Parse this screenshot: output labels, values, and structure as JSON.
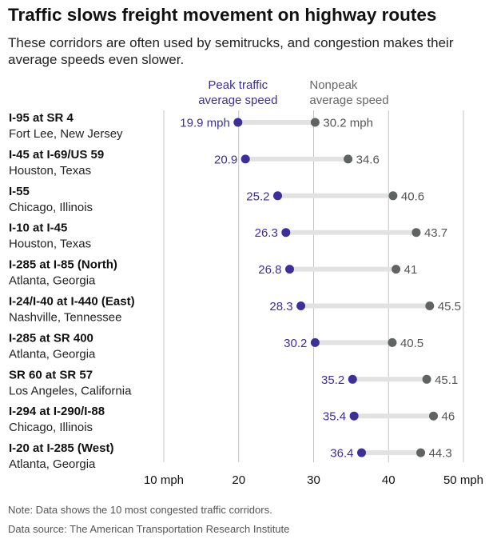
{
  "chart_data": {
    "type": "dumbbell",
    "title": "Traffic slows freight movement on highway routes",
    "subtitle": "These corridors are often used by semitrucks, and congestion makes their average speeds even slower.",
    "series": [
      {
        "name": "Peak traffic average speed",
        "legend_lines": [
          "Peak traffic",
          "average speed"
        ],
        "color": "#3d2f9a"
      },
      {
        "name": "Nonpeak average speed",
        "legend_lines": [
          "Nonpeak",
          "average speed"
        ],
        "color": "#5f6361"
      }
    ],
    "categories": [
      {
        "route": "I-95 at SR 4",
        "location": "Fort Lee, New Jersey",
        "peak": 19.9,
        "nonpeak": 30.2,
        "peak_label": "19.9 mph",
        "nonpeak_label": "30.2 mph"
      },
      {
        "route": "I-45 at I-69/US 59",
        "location": "Houston, Texas",
        "peak": 20.9,
        "nonpeak": 34.6,
        "peak_label": "20.9",
        "nonpeak_label": "34.6"
      },
      {
        "route": "I-55",
        "location": "Chicago, Illinois",
        "peak": 25.2,
        "nonpeak": 40.6,
        "peak_label": "25.2",
        "nonpeak_label": "40.6"
      },
      {
        "route": "I-10 at I-45",
        "location": "Houston, Texas",
        "peak": 26.3,
        "nonpeak": 43.7,
        "peak_label": "26.3",
        "nonpeak_label": "43.7"
      },
      {
        "route": "I-285 at I-85 (North)",
        "location": "Atlanta, Georgia",
        "peak": 26.8,
        "nonpeak": 41,
        "peak_label": "26.8",
        "nonpeak_label": "41"
      },
      {
        "route": "I-24/I-40 at I-440 (East)",
        "location": "Nashville, Tennessee",
        "peak": 28.3,
        "nonpeak": 45.5,
        "peak_label": "28.3",
        "nonpeak_label": "45.5"
      },
      {
        "route": "I-285 at SR 400",
        "location": "Atlanta, Georgia",
        "peak": 30.2,
        "nonpeak": 40.5,
        "peak_label": "30.2",
        "nonpeak_label": "40.5"
      },
      {
        "route": "SR 60 at SR 57",
        "location": "Los Angeles, California",
        "peak": 35.2,
        "nonpeak": 45.1,
        "peak_label": "35.2",
        "nonpeak_label": "45.1"
      },
      {
        "route": "I-294 at I-290/I-88",
        "location": "Chicago, Illinois",
        "peak": 35.4,
        "nonpeak": 46,
        "peak_label": "35.4",
        "nonpeak_label": "46"
      },
      {
        "route": "I-20 at I-285 (West)",
        "location": "Atlanta, Georgia",
        "peak": 36.4,
        "nonpeak": 44.3,
        "peak_label": "36.4",
        "nonpeak_label": "44.3"
      }
    ],
    "xlim": [
      10,
      50
    ],
    "xticks": [
      10,
      20,
      30,
      40,
      50
    ],
    "xtick_labels": [
      "10 mph",
      "20",
      "30",
      "40",
      "50 mph"
    ],
    "grid": true
  },
  "footer": {
    "note": "Note: Data shows the 10 most congested traffic corridors.",
    "source": "Data source: The American Transportation Research Institute"
  }
}
